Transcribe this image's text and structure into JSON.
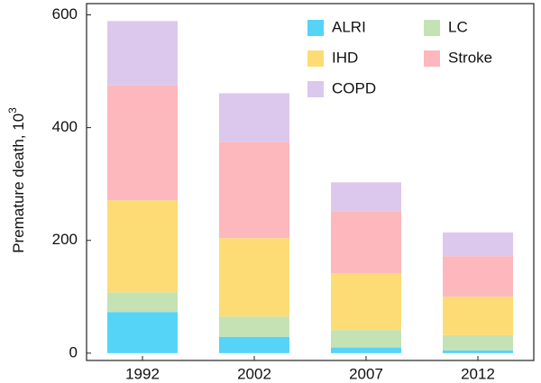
{
  "chart_data": {
    "type": "stacked_bar",
    "y_label": "Premature death, 10",
    "y_label_superscript": "3",
    "categories": [
      "1992",
      "2002",
      "2007",
      "2012"
    ],
    "series": [
      {
        "name": "ALRI",
        "color": "#55d4f8",
        "values": [
          73,
          29,
          10,
          5
        ]
      },
      {
        "name": "LC",
        "color": "#c5e2b5",
        "values": [
          35,
          36,
          31,
          27
        ]
      },
      {
        "name": "IHD",
        "color": "#fddc75",
        "values": [
          163,
          139,
          101,
          68
        ]
      },
      {
        "name": "Stroke",
        "color": "#fcb8bc",
        "values": [
          204,
          171,
          110,
          72
        ]
      },
      {
        "name": "COPD",
        "color": "#dcc8ec",
        "values": [
          114,
          86,
          51,
          42
        ]
      }
    ],
    "ylim": [
      -13,
      620
    ],
    "yticks": [
      0,
      200,
      400,
      600
    ],
    "grid": false
  }
}
